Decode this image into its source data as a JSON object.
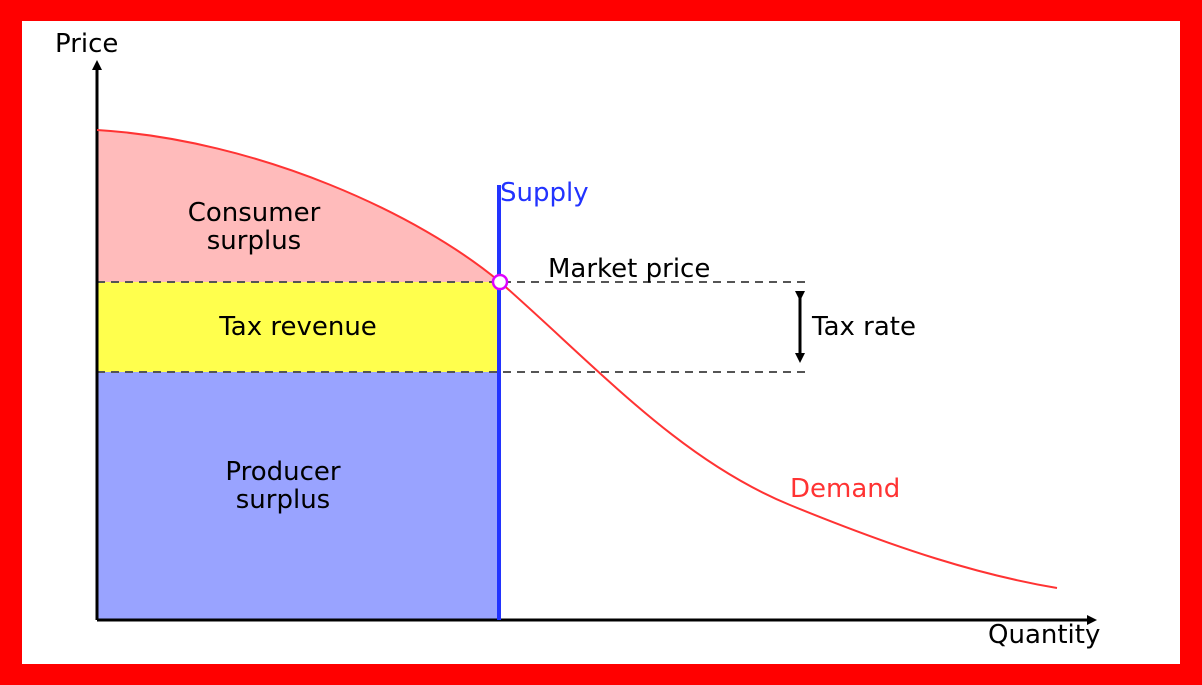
{
  "axes": {
    "y": "Price",
    "x": "Quantity"
  },
  "curves": {
    "supply": "Supply",
    "demand": "Demand"
  },
  "regions": {
    "consumer_surplus": [
      "Consumer",
      "surplus"
    ],
    "tax_revenue": "Tax revenue",
    "producer_surplus": [
      "Producer",
      "surplus"
    ]
  },
  "annotations": {
    "market_price": "Market price",
    "tax_rate": "Tax rate"
  }
}
